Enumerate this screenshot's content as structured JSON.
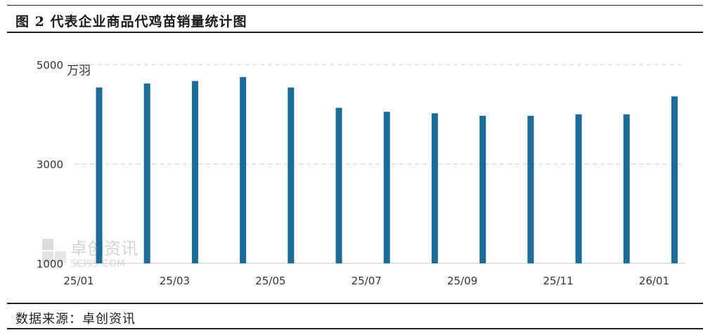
{
  "title": "图 2  代表企业商品代鸡苗销量统计图",
  "source": "数据来源：卓创资讯",
  "watermark": {
    "text": "卓创资讯",
    "sub": "SCI99.COM"
  },
  "colors": {
    "bar": "#1a6d9a",
    "grid": "#d0d0d0"
  },
  "chart_data": {
    "type": "bar",
    "title": "图 2  代表企业商品代鸡苗销量统计图",
    "ylabel": "万羽",
    "ylim": [
      1000,
      5000
    ],
    "yticks": [
      1000,
      3000,
      5000
    ],
    "grid": true,
    "categories": [
      "25/01",
      "25/02",
      "25/03",
      "25/04",
      "25/05",
      "25/06",
      "25/07",
      "25/08",
      "25/09",
      "25/10",
      "25/11",
      "25/12",
      "26/01"
    ],
    "xtick_labels": [
      "25/01",
      "25/03",
      "25/05",
      "25/07",
      "25/09",
      "25/11",
      "26/01"
    ],
    "values": [
      4540,
      4620,
      4670,
      4750,
      4540,
      4130,
      4050,
      4020,
      3970,
      3970,
      4000,
      4000,
      4360
    ]
  }
}
